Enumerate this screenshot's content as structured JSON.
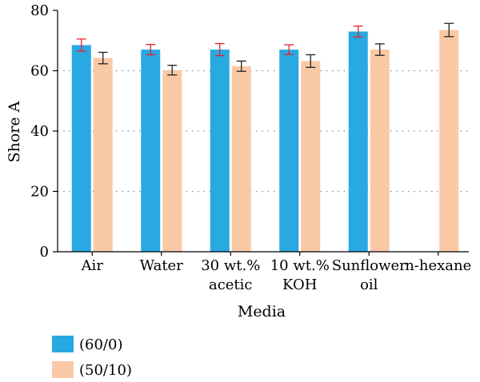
{
  "chart_data": {
    "type": "bar",
    "xlabel": "Media",
    "ylabel": "Shore A",
    "ylim": [
      0,
      80
    ],
    "yticks": [
      0,
      20,
      40,
      60,
      80
    ],
    "categories": [
      [
        "Air"
      ],
      [
        "Water"
      ],
      [
        "30 wt.%",
        "acetic"
      ],
      [
        "10 wt.%",
        "KOH"
      ],
      [
        "Sunflower",
        "oil"
      ],
      [
        "n-hexane"
      ]
    ],
    "series": [
      {
        "name": "(60/0)",
        "color": "#29a9e1",
        "error_color": "#e8202a",
        "values": [
          68.5,
          67,
          67,
          67,
          73,
          null
        ],
        "errors": [
          2,
          1.7,
          2,
          1.6,
          1.8,
          null
        ]
      },
      {
        "name": "(50/10)",
        "color": "#f9c9a6",
        "error_color": "#222222",
        "values": [
          64.2,
          60.2,
          61.5,
          63.2,
          67,
          73.5
        ],
        "errors": [
          1.9,
          1.6,
          1.7,
          2.1,
          1.9,
          2.2
        ]
      }
    ],
    "grid": "dotted horizontal",
    "legend_position": "bottom-left"
  }
}
